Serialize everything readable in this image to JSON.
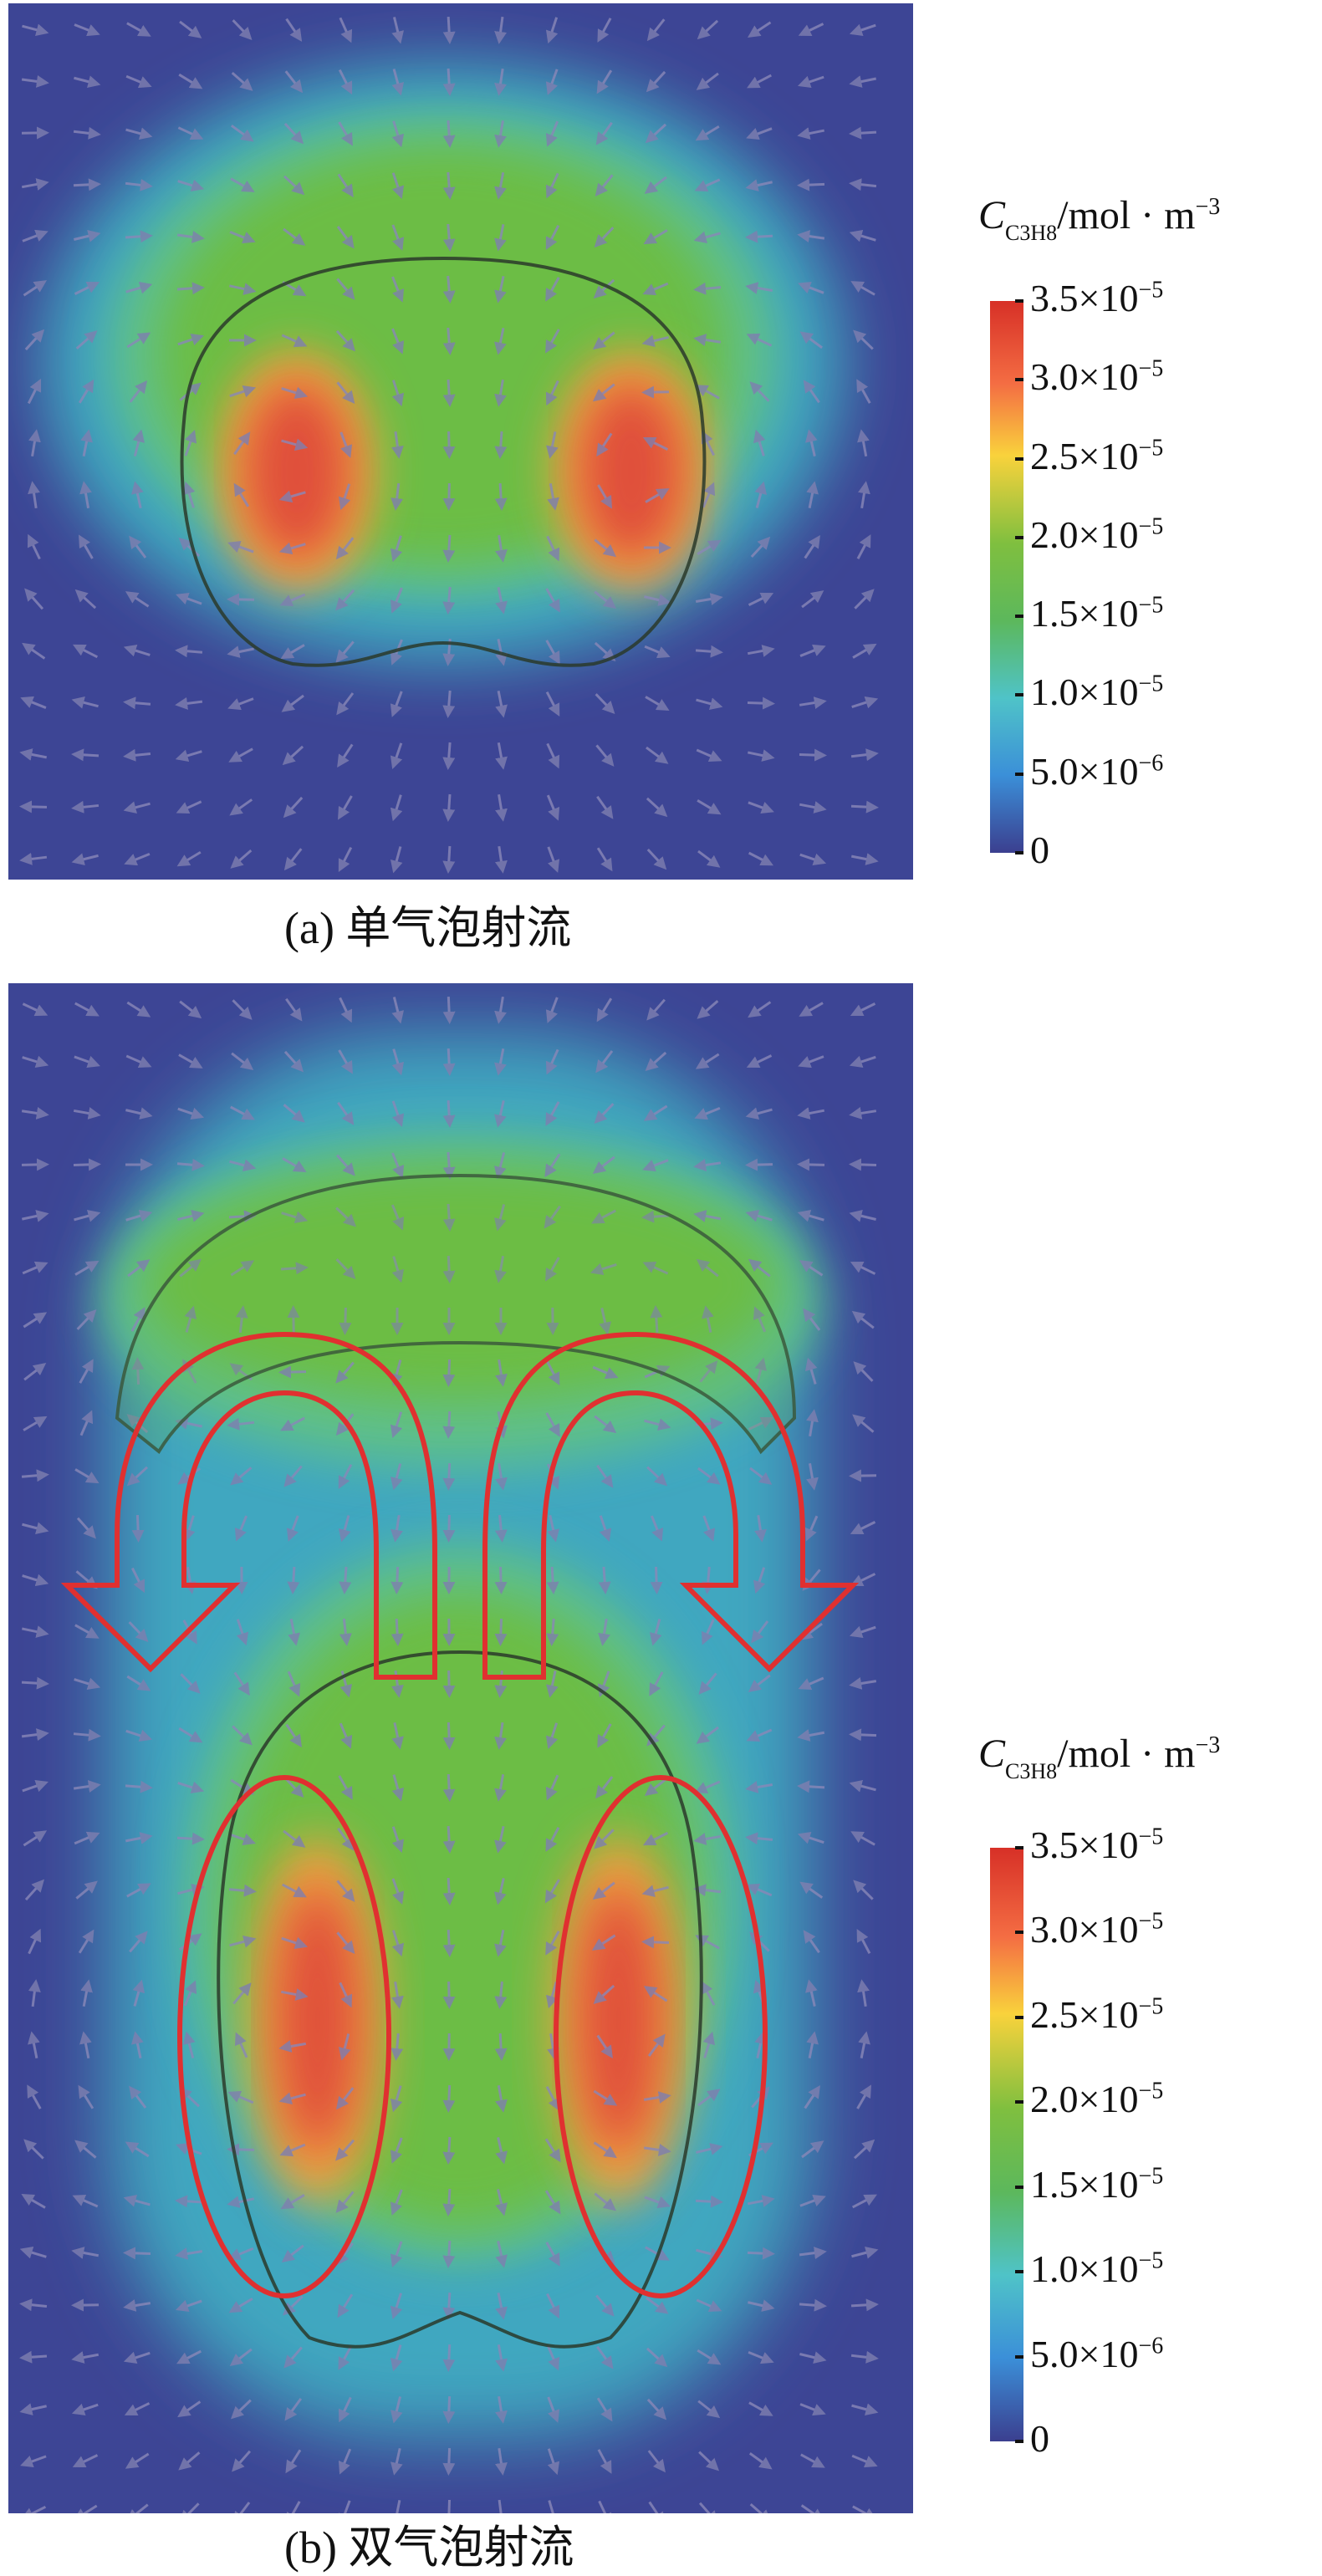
{
  "quantity": {
    "symbol": "C",
    "subscript_base": "C",
    "subscript_n1": "3",
    "subscript_mid": "H",
    "subscript_n2": "8",
    "unit": "/mol · m",
    "unit_exponent": "−3"
  },
  "colorbar": {
    "ticks": [
      {
        "mantissa": "3.5×10",
        "exp": "−5"
      },
      {
        "mantissa": "3.0×10",
        "exp": "−5"
      },
      {
        "mantissa": "2.5×10",
        "exp": "−5"
      },
      {
        "mantissa": "2.0×10",
        "exp": "−5"
      },
      {
        "mantissa": "1.5×10",
        "exp": "−5"
      },
      {
        "mantissa": "1.0×10",
        "exp": "−5"
      },
      {
        "mantissa": "5.0×10",
        "exp": "−6"
      },
      {
        "mantissa": "0",
        "exp": ""
      }
    ],
    "colors": [
      "#d73027",
      "#f46d43",
      "#f9d23c",
      "#7fbf3f",
      "#5cb85c",
      "#4fc3c8",
      "#3b8fd8",
      "#3b3f8f"
    ]
  },
  "panels": {
    "a": {
      "caption": "(a) 单气泡射流"
    },
    "b": {
      "caption": "(b) 双气泡射流"
    }
  },
  "styles": {
    "background": "#3d4595",
    "highlight_color": "#e03030",
    "contour_color": "#2a3a2a"
  }
}
